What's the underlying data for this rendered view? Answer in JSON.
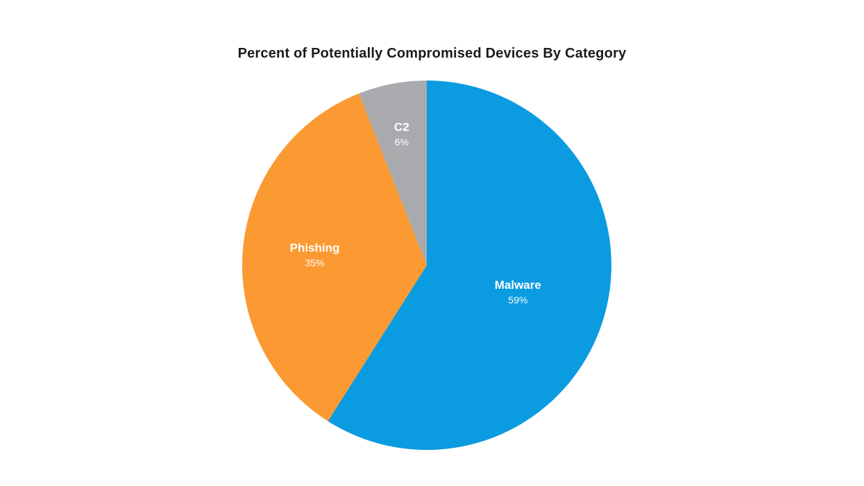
{
  "page": {
    "background": "#ffffff"
  },
  "chart_data": {
    "type": "pie",
    "title": "Percent of Potentially Compromised Devices By Category",
    "categories": [
      "Malware",
      "Phishing",
      "C2"
    ],
    "values": [
      59,
      35,
      6
    ],
    "percent_labels": [
      "59%",
      "35%",
      "6%"
    ],
    "colors": [
      "#0b9be0",
      "#fb9a33",
      "#a9aaae"
    ],
    "label_color": "#ffffff",
    "title_color": "#1b1b1b",
    "start_angle_deg": 0,
    "direction": "clockwise",
    "legend": "none",
    "background": "#ffffff"
  }
}
